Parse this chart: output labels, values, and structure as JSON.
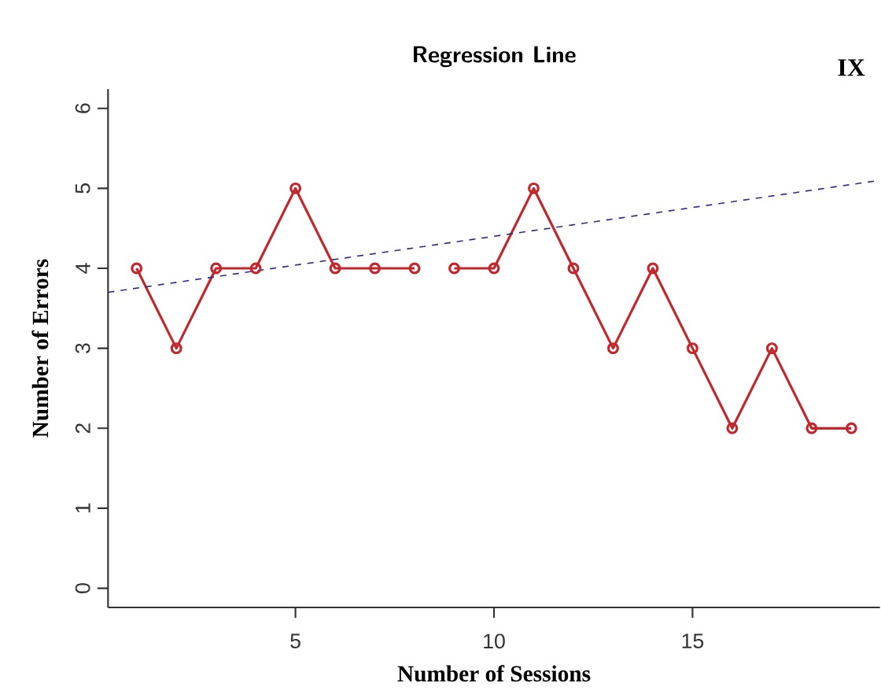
{
  "chart_data": {
    "type": "line",
    "title": "Regression Line",
    "xlabel": "Number of Sessions",
    "ylabel": "Number of Errors",
    "annotations": [
      "IX"
    ],
    "xlim": [
      0.28,
      19.72
    ],
    "ylim": [
      -0.24,
      6.24
    ],
    "xticks": [
      5,
      10,
      15
    ],
    "yticks": [
      0,
      1,
      2,
      3,
      4,
      5,
      6
    ],
    "grid": false,
    "series": [
      {
        "color": "#c0282d",
        "marker": "circle",
        "line_style": "solid",
        "x": [
          1,
          2,
          3,
          4,
          5,
          6,
          7,
          8
        ],
        "values": [
          4,
          3,
          4,
          4,
          5,
          4,
          4,
          4
        ]
      },
      {
        "color": "#c0282d",
        "marker": "circle",
        "line_style": "solid",
        "x": [
          9,
          10,
          11,
          12,
          13,
          14,
          15,
          16,
          17,
          18,
          19
        ],
        "values": [
          4,
          4,
          5,
          4,
          3,
          4,
          3,
          2,
          3,
          2,
          2
        ]
      },
      {
        "color": "#2b2b80",
        "marker": "none",
        "line_style": "dashed",
        "x": [
          0.28,
          19.72
        ],
        "values": [
          3.7,
          5.1
        ]
      }
    ]
  }
}
